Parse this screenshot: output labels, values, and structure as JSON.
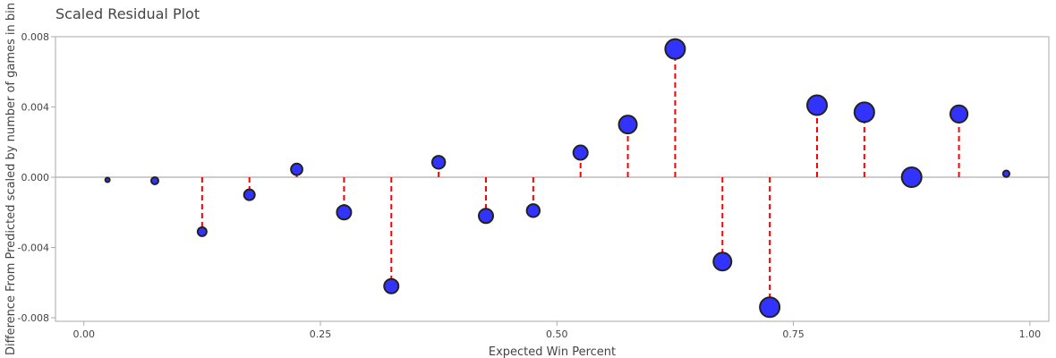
{
  "chart_data": {
    "type": "scatter",
    "title": "Scaled Residual Plot",
    "xlabel": "Expected Win Percent",
    "ylabel": "Difference From Predicted scaled by number of games in bin",
    "xlim": [
      -0.03,
      1.02
    ],
    "ylim": [
      -0.0082,
      0.008
    ],
    "x_ticks": [
      0.0,
      0.25,
      0.5,
      0.75,
      1.0
    ],
    "x_tick_labels": [
      "0.00",
      "0.25",
      "0.50",
      "0.75",
      "1.00"
    ],
    "y_ticks": [
      -0.008,
      -0.004,
      0.0,
      0.004,
      0.008
    ],
    "y_tick_labels": [
      "-0.008",
      "-0.004",
      "0.000",
      "0.004",
      "0.008"
    ],
    "grid": false,
    "marker_color": "#3333ff",
    "marker_edge": "#222222",
    "line_color": "#ff0000",
    "baseline_color": "#bbbbbb",
    "points": [
      {
        "x": 0.025,
        "y": -0.00015,
        "size": 1
      },
      {
        "x": 0.075,
        "y": -0.0002,
        "size": 2
      },
      {
        "x": 0.125,
        "y": -0.0031,
        "size": 2.5
      },
      {
        "x": 0.175,
        "y": -0.001,
        "size": 3
      },
      {
        "x": 0.225,
        "y": 0.00045,
        "size": 3.2
      },
      {
        "x": 0.275,
        "y": -0.002,
        "size": 4
      },
      {
        "x": 0.325,
        "y": -0.0062,
        "size": 4
      },
      {
        "x": 0.375,
        "y": 0.00085,
        "size": 3.6
      },
      {
        "x": 0.425,
        "y": -0.0022,
        "size": 4
      },
      {
        "x": 0.475,
        "y": -0.0019,
        "size": 3.6
      },
      {
        "x": 0.525,
        "y": 0.0014,
        "size": 4
      },
      {
        "x": 0.575,
        "y": 0.003,
        "size": 5
      },
      {
        "x": 0.625,
        "y": 0.0073,
        "size": 5.5
      },
      {
        "x": 0.675,
        "y": -0.0048,
        "size": 5
      },
      {
        "x": 0.725,
        "y": -0.0074,
        "size": 5.5
      },
      {
        "x": 0.775,
        "y": 0.0041,
        "size": 5.5
      },
      {
        "x": 0.825,
        "y": 0.0037,
        "size": 5.5
      },
      {
        "x": 0.875,
        "y": 0.0,
        "size": 5.5
      },
      {
        "x": 0.925,
        "y": 0.0036,
        "size": 4.8
      },
      {
        "x": 0.975,
        "y": 0.0002,
        "size": 1.8
      }
    ]
  }
}
